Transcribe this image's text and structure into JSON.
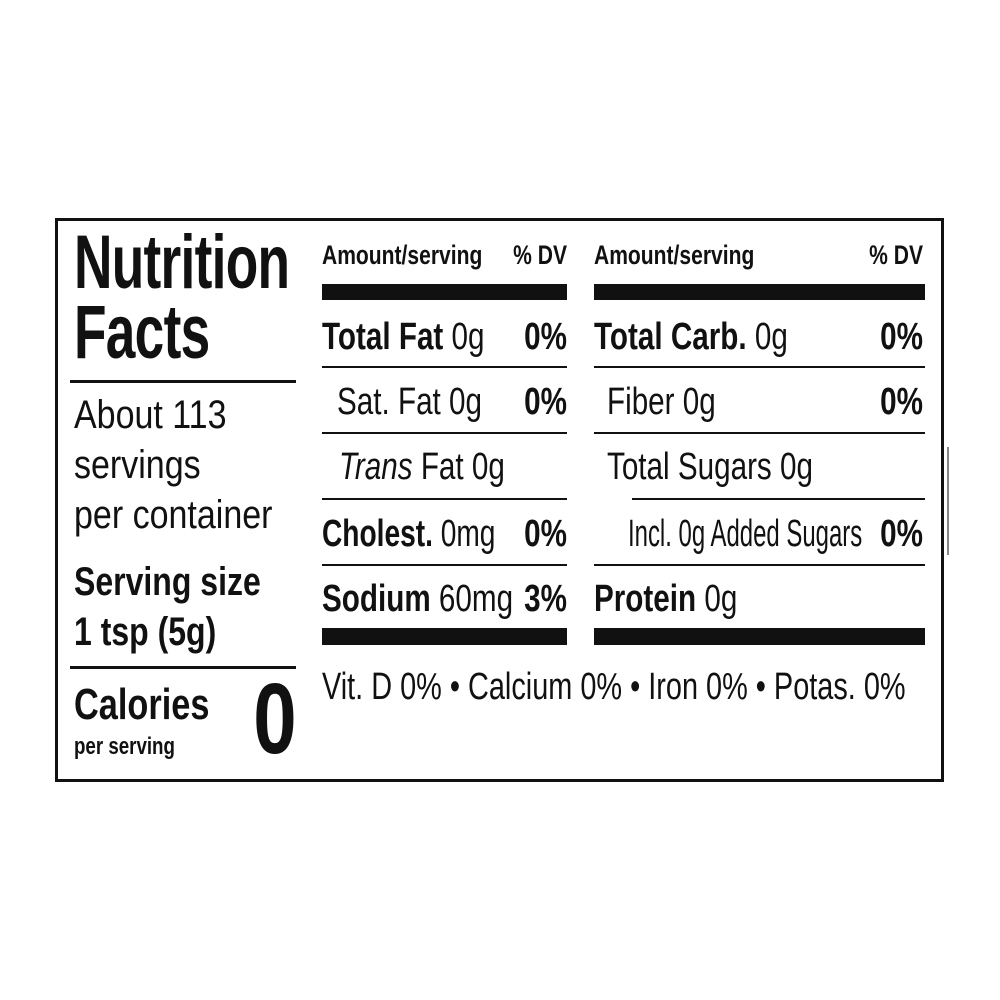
{
  "label": {
    "title_line1": "Nutrition",
    "title_line2": "Facts",
    "servings": [
      "About 113",
      "servings",
      "per container"
    ],
    "serving_size_label": "Serving size",
    "serving_size_value": "1 tsp (5g)",
    "calories_label": "Calories",
    "calories_sub": "per serving",
    "calories_value": "0",
    "left_column": {
      "header_amount": "Amount/serving",
      "header_dv": "% DV",
      "rows": [
        {
          "name": "Total Fat",
          "amount": "0g",
          "dv": "0%"
        },
        {
          "name": "Sat. Fat",
          "amount": "0g",
          "dv": "0%"
        },
        {
          "name": "Trans",
          "amount": "Fat 0g",
          "dv": ""
        },
        {
          "name": "Cholest.",
          "amount": "0mg",
          "dv": "0%"
        },
        {
          "name": "Sodium",
          "amount": "60mg",
          "dv": "3%"
        }
      ]
    },
    "right_column": {
      "header_amount": "Amount/serving",
      "header_dv": "% DV",
      "rows": [
        {
          "name": "Total Carb.",
          "amount": "0g",
          "dv": "0%"
        },
        {
          "name": "Fiber",
          "amount": "0g",
          "dv": "0%"
        },
        {
          "name": "Total Sugars",
          "amount": "0g",
          "dv": ""
        },
        {
          "name": "Incl. 0g Added Sugars",
          "amount": "",
          "dv": "0%"
        },
        {
          "name": "Protein",
          "amount": "0g",
          "dv": ""
        }
      ]
    },
    "footer": "Vit. D 0% • Calcium 0% • Iron 0% • Potas. 0%"
  }
}
